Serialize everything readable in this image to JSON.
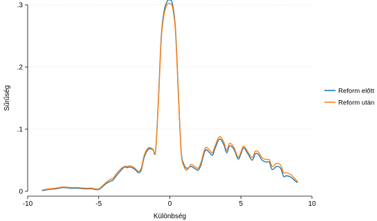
{
  "chart_data": {
    "type": "line",
    "title": "",
    "xlabel": "Különbség",
    "ylabel": "Sűrűség",
    "xlim": [
      -10,
      10
    ],
    "ylim": [
      0,
      0.3
    ],
    "x_ticks": [
      -10,
      -5,
      0,
      5,
      10
    ],
    "x_tick_labels": [
      "-10",
      "-5",
      "0",
      "5",
      "10"
    ],
    "y_ticks": [
      0,
      0.1,
      0.2,
      0.3
    ],
    "y_tick_labels": [
      "0",
      ".1",
      ".2",
      ".3"
    ],
    "grid": true,
    "legend_position": "right",
    "series": [
      {
        "name": "Reform előtt",
        "color": "#1f77b4",
        "x": [
          -9,
          -8.5,
          -8,
          -7.5,
          -7,
          -6.5,
          -6,
          -5.5,
          -5,
          -4.5,
          -4.2,
          -4,
          -3.8,
          -3.5,
          -3.2,
          -3,
          -2.8,
          -2.5,
          -2.2,
          -2,
          -1.8,
          -1.5,
          -1.2,
          -1,
          -0.8,
          -0.6,
          -0.4,
          -0.2,
          0,
          0.2,
          0.4,
          0.6,
          0.8,
          1,
          1.2,
          1.5,
          1.8,
          2,
          2.2,
          2.5,
          2.8,
          3,
          3.2,
          3.5,
          3.8,
          4,
          4.2,
          4.5,
          4.8,
          5,
          5.2,
          5.5,
          5.8,
          6,
          6.2,
          6.5,
          6.8,
          7,
          7.2,
          7.5,
          7.8,
          8,
          8.2,
          8.5,
          8.8,
          9
        ],
        "y": [
          0.001,
          0.003,
          0.004,
          0.006,
          0.005,
          0.005,
          0.004,
          0.004,
          0.003,
          0.012,
          0.016,
          0.018,
          0.024,
          0.032,
          0.039,
          0.038,
          0.039,
          0.036,
          0.03,
          0.035,
          0.055,
          0.068,
          0.067,
          0.065,
          0.15,
          0.25,
          0.29,
          0.305,
          0.308,
          0.3,
          0.26,
          0.16,
          0.065,
          0.043,
          0.037,
          0.04,
          0.036,
          0.034,
          0.043,
          0.066,
          0.062,
          0.058,
          0.07,
          0.084,
          0.075,
          0.062,
          0.073,
          0.068,
          0.052,
          0.06,
          0.07,
          0.06,
          0.05,
          0.06,
          0.06,
          0.05,
          0.047,
          0.047,
          0.035,
          0.04,
          0.037,
          0.024,
          0.025,
          0.023,
          0.017,
          0.014
        ]
      },
      {
        "name": "Reform után",
        "color": "#ff7f0e",
        "x": [
          -9,
          -8.5,
          -8,
          -7.5,
          -7,
          -6.5,
          -6,
          -5.5,
          -5,
          -4.5,
          -4.2,
          -4,
          -3.8,
          -3.5,
          -3.2,
          -3,
          -2.8,
          -2.5,
          -2.2,
          -2,
          -1.8,
          -1.5,
          -1.2,
          -1,
          -0.8,
          -0.6,
          -0.4,
          -0.2,
          0,
          0.2,
          0.4,
          0.6,
          0.8,
          1,
          1.2,
          1.5,
          1.8,
          2,
          2.2,
          2.5,
          2.8,
          3,
          3.2,
          3.5,
          3.8,
          4,
          4.2,
          4.5,
          4.8,
          5,
          5.2,
          5.5,
          5.8,
          6,
          6.2,
          6.5,
          6.8,
          7,
          7.2,
          7.5,
          7.8,
          8,
          8.2,
          8.5,
          8.8,
          9
        ],
        "y": [
          0.002,
          0.004,
          0.005,
          0.007,
          0.006,
          0.006,
          0.005,
          0.005,
          0.004,
          0.014,
          0.019,
          0.021,
          0.027,
          0.035,
          0.04,
          0.04,
          0.041,
          0.038,
          0.032,
          0.038,
          0.058,
          0.07,
          0.068,
          0.066,
          0.145,
          0.245,
          0.285,
          0.3,
          0.302,
          0.295,
          0.255,
          0.155,
          0.062,
          0.04,
          0.034,
          0.043,
          0.039,
          0.037,
          0.047,
          0.07,
          0.066,
          0.062,
          0.074,
          0.088,
          0.079,
          0.066,
          0.077,
          0.071,
          0.055,
          0.063,
          0.073,
          0.063,
          0.054,
          0.064,
          0.064,
          0.054,
          0.051,
          0.051,
          0.04,
          0.045,
          0.042,
          0.03,
          0.03,
          0.027,
          0.02,
          0.015
        ]
      }
    ]
  }
}
